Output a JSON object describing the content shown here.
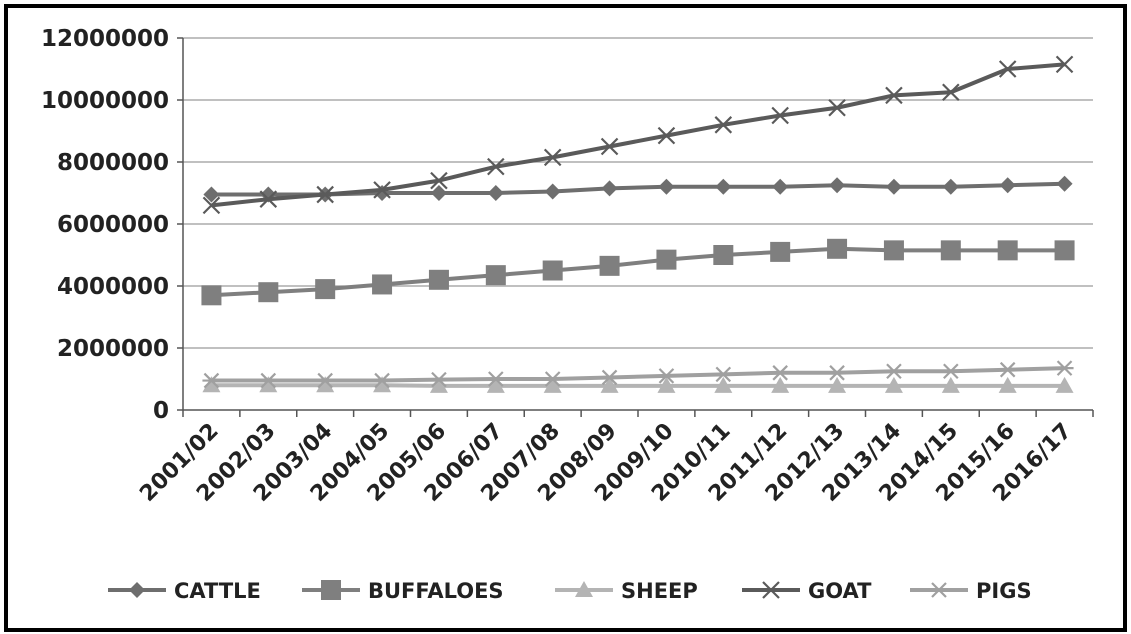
{
  "chart_data": {
    "type": "line",
    "title": "",
    "xlabel": "",
    "ylabel": "",
    "ylim": [
      0,
      12000000
    ],
    "yticks": [
      "0",
      "2000000",
      "4000000",
      "6000000",
      "8000000",
      "10000000",
      "12000000"
    ],
    "grid": "horizontal",
    "legend_position": "bottom",
    "categories": [
      "2001/02",
      "2002/03",
      "2003/04",
      "2004/05",
      "2005/06",
      "2006/07",
      "2007/08",
      "2008/09",
      "2009/10",
      "2010/11",
      "2011/12",
      "2012/13",
      "2013/14",
      "2014/15",
      "2015/16",
      "2016/17"
    ],
    "series": [
      {
        "name": "CATTLE",
        "marker": "diamond",
        "color": "#6e6e6e",
        "values": [
          6950000,
          6950000,
          6950000,
          7000000,
          7000000,
          7000000,
          7050000,
          7150000,
          7200000,
          7200000,
          7200000,
          7250000,
          7200000,
          7200000,
          7250000,
          7300000
        ]
      },
      {
        "name": "BUFFALOES",
        "marker": "square",
        "color": "#7f7f7f",
        "values": [
          3700000,
          3800000,
          3900000,
          4050000,
          4200000,
          4350000,
          4500000,
          4650000,
          4850000,
          5000000,
          5100000,
          5200000,
          5150000,
          5150000,
          5150000,
          5150000
        ]
      },
      {
        "name": "SHEEP",
        "marker": "triangle",
        "color": "#b4b4b4",
        "values": [
          800000,
          800000,
          800000,
          800000,
          780000,
          780000,
          780000,
          780000,
          780000,
          780000,
          780000,
          780000,
          780000,
          780000,
          780000,
          780000
        ]
      },
      {
        "name": "GOAT",
        "marker": "x",
        "color": "#5a5a5a",
        "values": [
          6600000,
          6800000,
          6950000,
          7100000,
          7400000,
          7850000,
          8150000,
          8500000,
          8850000,
          9200000,
          9500000,
          9750000,
          10150000,
          10250000,
          11000000,
          11150000
        ]
      },
      {
        "name": "PIGS",
        "marker": "star",
        "color": "#a0a0a0",
        "values": [
          950000,
          950000,
          950000,
          950000,
          980000,
          1000000,
          1000000,
          1050000,
          1100000,
          1150000,
          1200000,
          1200000,
          1250000,
          1250000,
          1300000,
          1350000
        ]
      }
    ]
  }
}
